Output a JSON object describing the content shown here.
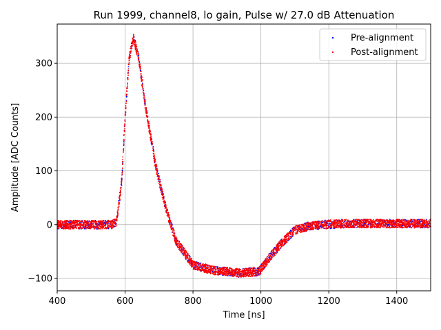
{
  "chart_data": {
    "type": "scatter",
    "title": "Run 1999, channel8, lo gain, Pulse w/ 27.0 dB Attenuation",
    "xlabel": "Time [ns]",
    "ylabel": "Amplitude [ADC Counts]",
    "xlim": [
      400,
      1500
    ],
    "ylim": [
      -123,
      373
    ],
    "xticks": [
      400,
      600,
      800,
      1000,
      1200,
      1400
    ],
    "yticks": [
      -100,
      0,
      100,
      200,
      300
    ],
    "grid": true,
    "legend_position": "top-right",
    "series": [
      {
        "name": "Pre-alignment",
        "color": "#0000ff",
        "marker": "dot"
      },
      {
        "name": "Post-alignment",
        "color": "#ff0000",
        "marker": "dot"
      }
    ],
    "pulse_shape": {
      "x": [
        400,
        560,
        575,
        590,
        600,
        612,
        625,
        640,
        660,
        690,
        720,
        750,
        800,
        860,
        940,
        995,
        1020,
        1060,
        1100,
        1140,
        1180,
        1250,
        1500
      ],
      "y": [
        0,
        0,
        5,
        80,
        200,
        310,
        347,
        310,
        220,
        110,
        30,
        -30,
        -75,
        -85,
        -90,
        -87,
        -65,
        -35,
        -10,
        -3,
        0,
        2,
        2
      ]
    },
    "noise_band_adc": 8
  }
}
